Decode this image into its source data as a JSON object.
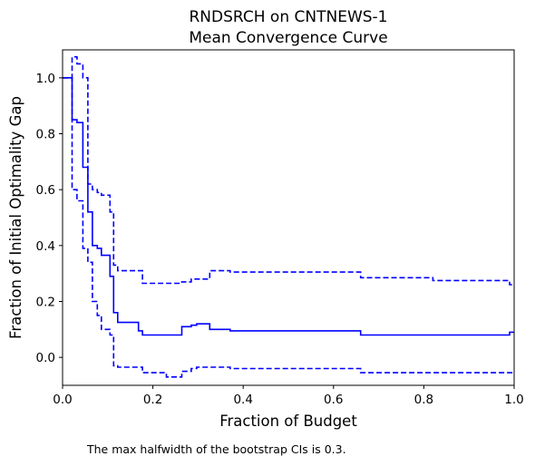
{
  "chart_data": {
    "type": "line",
    "title": "RNDSRCH on CNTNEWS-1",
    "subtitle": "Mean Convergence Curve",
    "xlabel": "Fraction of Budget",
    "ylabel": "Fraction of Initial Optimality Gap",
    "xlim": [
      0.0,
      1.0
    ],
    "ylim": [
      -0.1,
      1.1
    ],
    "x_ticks": [
      "0.0",
      "0.2",
      "0.4",
      "0.6",
      "0.8",
      "1.0"
    ],
    "y_ticks": [
      "0.0",
      "0.2",
      "0.4",
      "0.6",
      "0.8",
      "1.0"
    ],
    "grid": false,
    "line_color": "#0000ff",
    "series": [
      {
        "style": "solid",
        "drawstyle": "steps-post",
        "x": [
          0.0,
          0.021,
          0.032,
          0.045,
          0.056,
          0.066,
          0.077,
          0.086,
          0.105,
          0.113,
          0.122,
          0.168,
          0.177,
          0.264,
          0.285,
          0.297,
          0.326,
          0.371,
          0.655,
          0.66,
          0.99,
          1.0
        ],
        "y": [
          1.0,
          0.85,
          0.84,
          0.68,
          0.52,
          0.4,
          0.39,
          0.365,
          0.29,
          0.16,
          0.125,
          0.095,
          0.08,
          0.11,
          0.115,
          0.12,
          0.1,
          0.095,
          0.095,
          0.08,
          0.09,
          0.09
        ]
      },
      {
        "style": "dashed",
        "drawstyle": "steps-post",
        "x": [
          0.0,
          0.021,
          0.032,
          0.045,
          0.056,
          0.066,
          0.077,
          0.086,
          0.105,
          0.113,
          0.122,
          0.168,
          0.177,
          0.264,
          0.285,
          0.297,
          0.326,
          0.371,
          0.655,
          0.66,
          0.82,
          0.99,
          1.0
        ],
        "y": [
          1.0,
          1.075,
          1.05,
          1.0,
          0.62,
          0.6,
          0.59,
          0.58,
          0.52,
          0.33,
          0.31,
          0.31,
          0.265,
          0.27,
          0.28,
          0.28,
          0.31,
          0.305,
          0.305,
          0.285,
          0.275,
          0.26,
          0.26
        ]
      },
      {
        "style": "dashed",
        "drawstyle": "steps-post",
        "x": [
          0.0,
          0.021,
          0.032,
          0.045,
          0.056,
          0.066,
          0.077,
          0.086,
          0.105,
          0.113,
          0.122,
          0.168,
          0.177,
          0.23,
          0.264,
          0.285,
          0.297,
          0.326,
          0.371,
          0.655,
          0.66,
          1.0
        ],
        "y": [
          1.0,
          0.6,
          0.56,
          0.39,
          0.34,
          0.2,
          0.15,
          0.1,
          0.08,
          -0.03,
          -0.035,
          -0.035,
          -0.055,
          -0.07,
          -0.05,
          -0.04,
          -0.035,
          -0.035,
          -0.04,
          -0.04,
          -0.055,
          -0.055
        ]
      }
    ]
  },
  "footnote": "The max halfwidth of the bootstrap CIs is 0.3."
}
